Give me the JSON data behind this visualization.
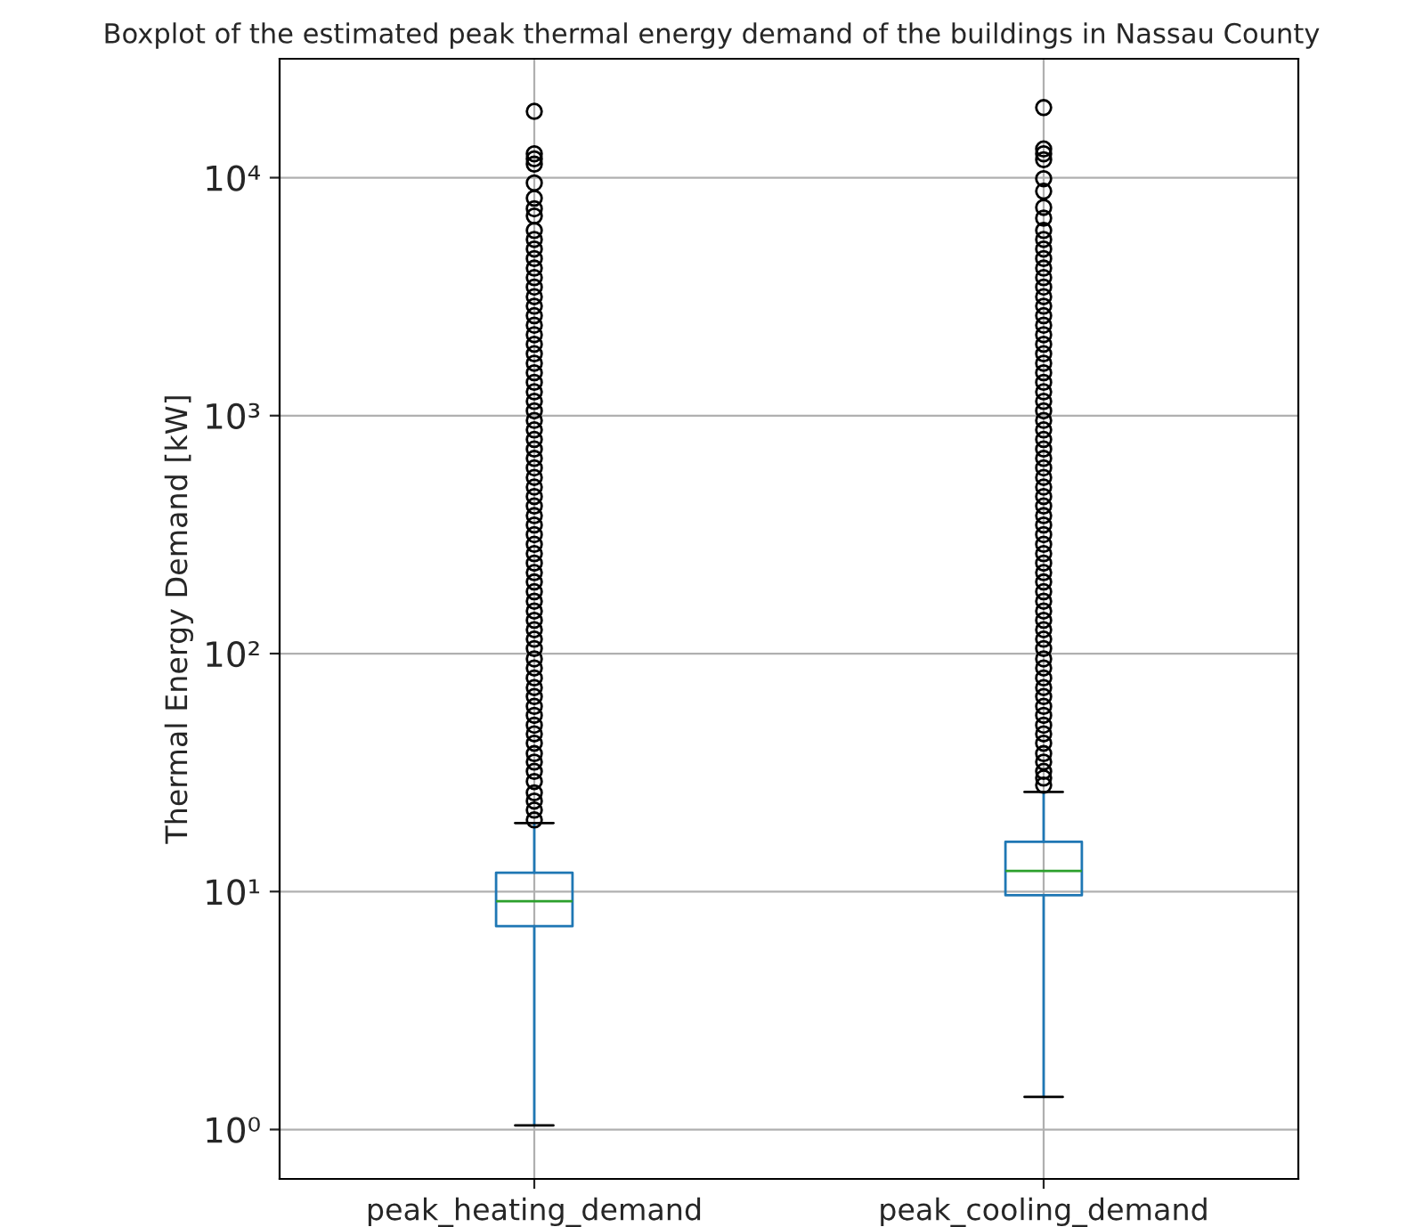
{
  "chart_data": {
    "type": "box",
    "title": "Boxplot of the estimated peak thermal energy demand of the buildings in Nassau County",
    "ylabel": "Thermal Energy Demand [kW]",
    "categories": [
      "peak_heating_demand",
      "peak_cooling_demand"
    ],
    "series": [
      {
        "color": "#1f77b4",
        "boxes": [
          {
            "low": 1.04,
            "q1": 7.15,
            "median": 9.1,
            "q3": 12,
            "high": 19.4,
            "outliers": [
              20,
              22,
              24,
              26,
              29,
              32,
              35,
              38,
              42,
              46,
              50,
              55,
              60,
              66,
              72,
              79,
              87,
              95,
              105,
              115,
              126,
              138,
              151,
              166,
              182,
              200,
              219,
              240,
              263,
              288,
              316,
              347,
              380,
              417,
              457,
              501,
              550,
              603,
              661,
              724,
              794,
              871,
              955,
              1047,
              1148,
              1259,
              1380,
              1514,
              1660,
              1820,
              1995,
              2188,
              2399,
              2630,
              2884,
              3162,
              3467,
              3802,
              4169,
              4571,
              5012,
              5500,
              6000,
              6900,
              7400,
              8200,
              9500,
              11400,
              12000,
              12600,
              19000
            ]
          },
          {
            "low": 1.37,
            "q1": 9.65,
            "median": 12.2,
            "q3": 16.2,
            "high": 26.2,
            "outliers": [
              28,
              30,
              32,
              35,
              38,
              42,
              46,
              50,
              55,
              60,
              66,
              72,
              79,
              87,
              95,
              105,
              115,
              126,
              138,
              151,
              166,
              182,
              200,
              219,
              240,
              263,
              288,
              316,
              347,
              380,
              417,
              457,
              501,
              550,
              603,
              661,
              724,
              794,
              871,
              955,
              1047,
              1148,
              1259,
              1380,
              1514,
              1660,
              1820,
              1995,
              2188,
              2399,
              2630,
              2884,
              3162,
              3467,
              3802,
              4169,
              4571,
              5012,
              5500,
              6000,
              6760,
              7500,
              8770,
              9900,
              11900,
              12600,
              13200,
              19700
            ]
          }
        ]
      }
    ],
    "log": "y",
    "ylim": [
      0.62,
      31600
    ],
    "yticks": [
      {
        "value": 1,
        "label": "10⁰"
      },
      {
        "value": 10,
        "label": "10¹"
      },
      {
        "value": 100,
        "label": "10²"
      },
      {
        "value": 1000,
        "label": "10³"
      },
      {
        "value": 10000,
        "label": "10⁴"
      }
    ],
    "grid": true,
    "marker": "circle"
  }
}
